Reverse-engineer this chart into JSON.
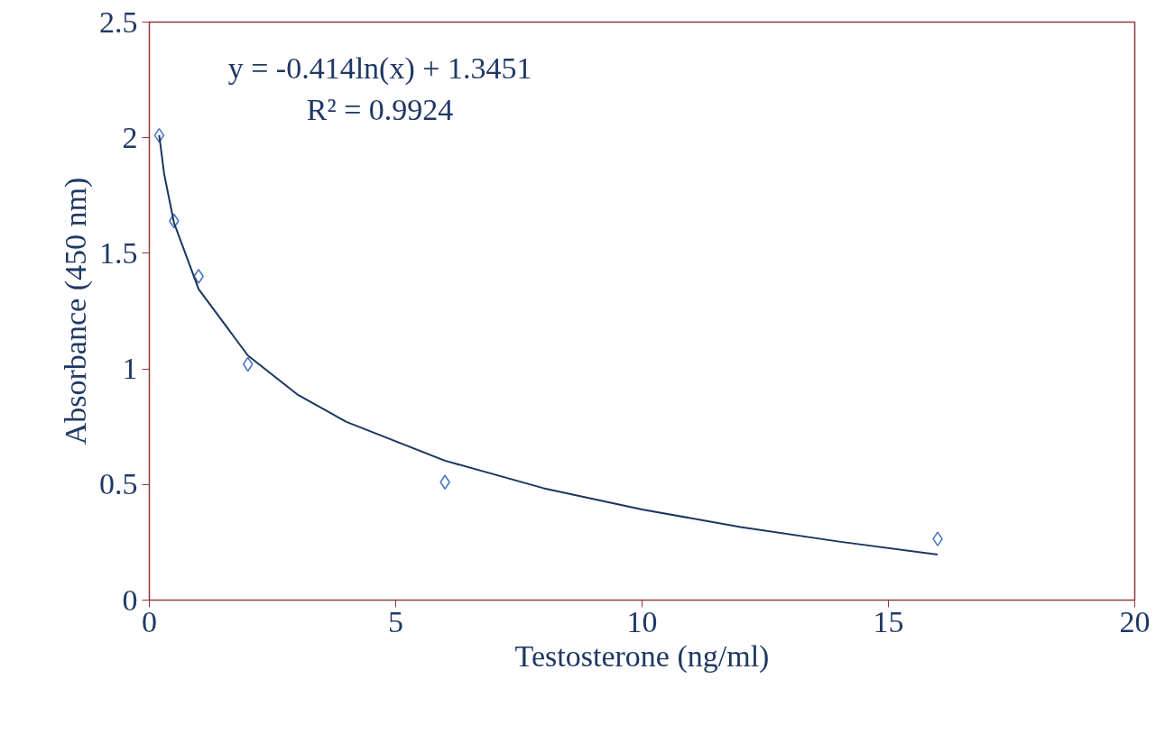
{
  "chart_data": {
    "type": "scatter",
    "xlabel": "Testosterone (ng/ml)",
    "ylabel": "Absorbance (450 nm)",
    "annotations": [
      "y = -0.414ln(x) + 1.3451",
      "R² = 0.9924"
    ],
    "series": [
      {
        "color": "#4472c4",
        "marker": "diamond",
        "x": [
          0.2,
          0.5,
          1,
          2,
          6,
          16
        ],
        "values": [
          2.01,
          1.64,
          1.4,
          1.02,
          0.51,
          0.265
        ]
      },
      {
        "type": "line",
        "color": "#17375e",
        "line_style": "solid",
        "x": [
          0.2,
          0.3,
          0.5,
          1,
          2,
          3,
          4,
          6,
          8,
          10,
          12,
          14,
          16
        ],
        "values": [
          2.011,
          1.844,
          1.632,
          1.345,
          1.058,
          0.89,
          0.771,
          0.603,
          0.484,
          0.392,
          0.316,
          0.253,
          0.197
        ]
      }
    ],
    "xlim": [
      0,
      20
    ],
    "xticks": [
      0,
      5,
      10,
      15,
      20
    ],
    "ylim": [
      0,
      2.5
    ],
    "yticks": [
      0,
      0.5,
      1,
      1.5,
      2,
      2.5
    ],
    "grid": false
  }
}
